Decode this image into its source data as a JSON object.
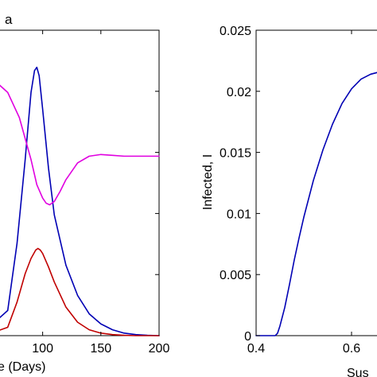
{
  "chart_data": [
    {
      "type": "line",
      "panel_label": "a",
      "xlabel": "e (Days)",
      "ylabel": "",
      "x_tick_labels": [
        "100",
        "150",
        "200"
      ],
      "x_tick_values": [
        100,
        150,
        200
      ],
      "xlim": [
        62,
        200
      ],
      "y_tick_count": 4,
      "grid": false,
      "series": [
        {
          "color": "#0000b4",
          "x": [
            62,
            70,
            78,
            85,
            90,
            93,
            95,
            97,
            100,
            105,
            110,
            120,
            130,
            140,
            150,
            160,
            170,
            180,
            190,
            200
          ],
          "values": [
            0.1,
            0.15,
            0.55,
            1.05,
            1.45,
            1.58,
            1.6,
            1.55,
            1.35,
            1.0,
            0.72,
            0.42,
            0.24,
            0.13,
            0.07,
            0.035,
            0.015,
            0.006,
            0.002,
            0.0
          ]
        },
        {
          "color": "#e000e0",
          "x": [
            62,
            70,
            80,
            90,
            95,
            100,
            103,
            106,
            110,
            115,
            120,
            130,
            140,
            150,
            160,
            170,
            180,
            190,
            200
          ],
          "values": [
            1.5,
            1.45,
            1.3,
            1.05,
            0.9,
            0.82,
            0.79,
            0.78,
            0.8,
            0.86,
            0.93,
            1.03,
            1.07,
            1.08,
            1.075,
            1.07,
            1.07,
            1.07,
            1.07
          ]
        },
        {
          "color": "#c00000",
          "x": [
            62,
            70,
            78,
            85,
            90,
            94,
            96,
            98,
            100,
            105,
            110,
            120,
            130,
            140,
            150,
            160,
            170,
            180,
            190,
            200
          ],
          "values": [
            0.03,
            0.05,
            0.2,
            0.37,
            0.46,
            0.51,
            0.52,
            0.51,
            0.49,
            0.41,
            0.32,
            0.17,
            0.08,
            0.035,
            0.015,
            0.006,
            0.002,
            0.0,
            0.0,
            0.0
          ]
        }
      ]
    },
    {
      "type": "line",
      "xlabel": "Sus",
      "ylabel": "Infected, I",
      "x_tick_labels": [
        "0.4",
        "0.6"
      ],
      "x_tick_values": [
        0.4,
        0.6
      ],
      "y_tick_labels": [
        "0",
        "0.005",
        "0.01",
        "0.015",
        "0.02",
        "0.025"
      ],
      "y_tick_values": [
        0,
        0.005,
        0.01,
        0.015,
        0.02,
        0.025
      ],
      "xlim": [
        0.4,
        0.66
      ],
      "ylim": [
        0,
        0.025
      ],
      "grid": false,
      "series": [
        {
          "color": "#0000b4",
          "x": [
            0.4,
            0.44,
            0.445,
            0.45,
            0.46,
            0.47,
            0.48,
            0.49,
            0.5,
            0.52,
            0.54,
            0.56,
            0.58,
            0.6,
            0.62,
            0.64,
            0.66
          ],
          "values": [
            0.0,
            0.0,
            0.0002,
            0.0008,
            0.0023,
            0.0042,
            0.0062,
            0.008,
            0.0097,
            0.0127,
            0.0152,
            0.0173,
            0.019,
            0.0202,
            0.021,
            0.0214,
            0.0216
          ]
        }
      ]
    }
  ]
}
